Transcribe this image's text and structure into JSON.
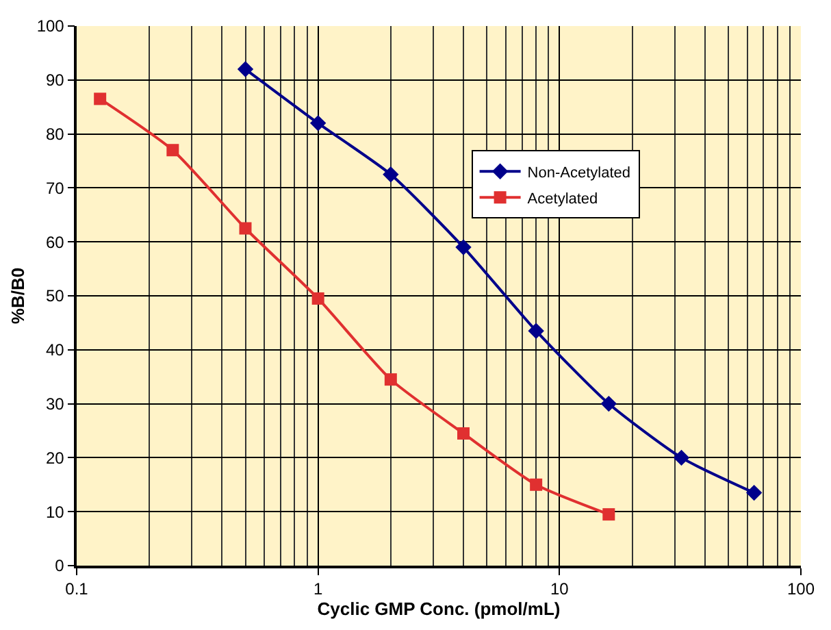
{
  "chart_data": {
    "type": "line",
    "xlabel": "Cyclic GMP Conc. (pmol/mL)",
    "ylabel": "%B/B0",
    "log": "x",
    "xlim": [
      0.1,
      100
    ],
    "xticks": [
      0.1,
      1,
      10,
      100
    ],
    "ylim": [
      0,
      100
    ],
    "yticks": [
      0,
      10,
      20,
      30,
      40,
      50,
      60,
      70,
      80,
      90,
      100
    ],
    "grid": true,
    "legend": "top right",
    "series": [
      {
        "name": "Non-Acetylated",
        "color": "#00008b",
        "marker": "diamond",
        "x": [
          0.5,
          1,
          2,
          4,
          8,
          16,
          32,
          64
        ],
        "values": [
          92,
          82,
          72.5,
          59,
          43.5,
          30,
          20,
          13.5
        ]
      },
      {
        "name": "Acetylated",
        "color": "#e03030",
        "marker": "square",
        "x": [
          0.125,
          0.25,
          0.5,
          1,
          2,
          4,
          8,
          16
        ],
        "values": [
          86.5,
          77,
          62.5,
          49.5,
          34.5,
          24.5,
          15,
          9.5
        ]
      }
    ]
  }
}
